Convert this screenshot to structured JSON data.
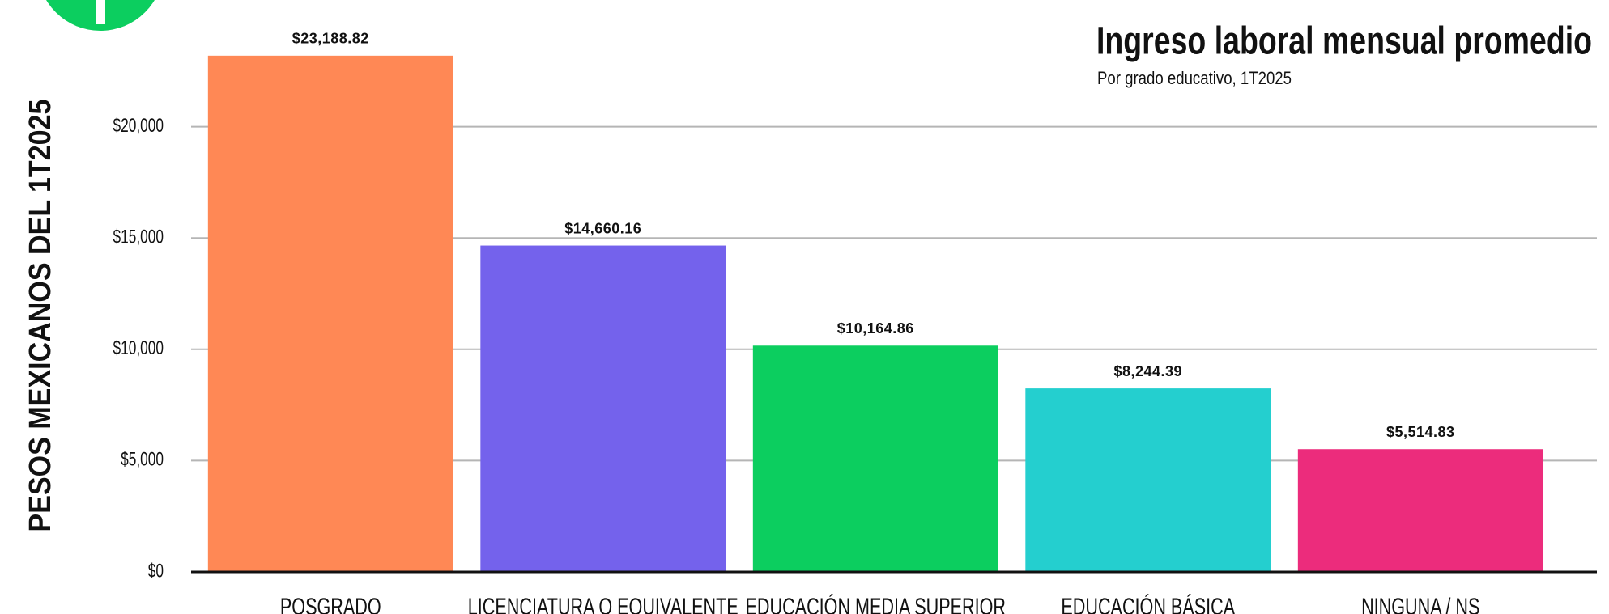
{
  "chart_data": {
    "type": "bar",
    "title": "Ingreso laboral mensual promedio",
    "subtitle": "Por grado educativo, 1T2025",
    "y_label": "PESOS MEXICANOS DEL 1T2025",
    "categories": [
      "POSGRADO",
      "LICENCIATURA O EQUIVALENTE",
      "EDUCACIÓN MEDIA SUPERIOR",
      "EDUCACIÓN BÁSICA",
      "NINGUNA / NS"
    ],
    "values": [
      23188.82,
      14660.16,
      10164.86,
      8244.39,
      5514.83
    ],
    "value_labels": [
      "$23,188.82",
      "$14,660.16",
      "$10,164.86",
      "$8,244.39",
      "$5,514.83"
    ],
    "colors": [
      "#ff8855",
      "#7462ec",
      "#0cce5f",
      "#24cfcf",
      "#ec2c7c"
    ],
    "ylim": [
      0,
      25000
    ],
    "yticks": [
      {
        "value": 0,
        "label": "$0"
      },
      {
        "value": 5000,
        "label": "$5,000"
      },
      {
        "value": 10000,
        "label": "$10,000"
      },
      {
        "value": 15000,
        "label": "$15,000"
      },
      {
        "value": 20000,
        "label": "$20,000"
      }
    ],
    "grid": true
  }
}
